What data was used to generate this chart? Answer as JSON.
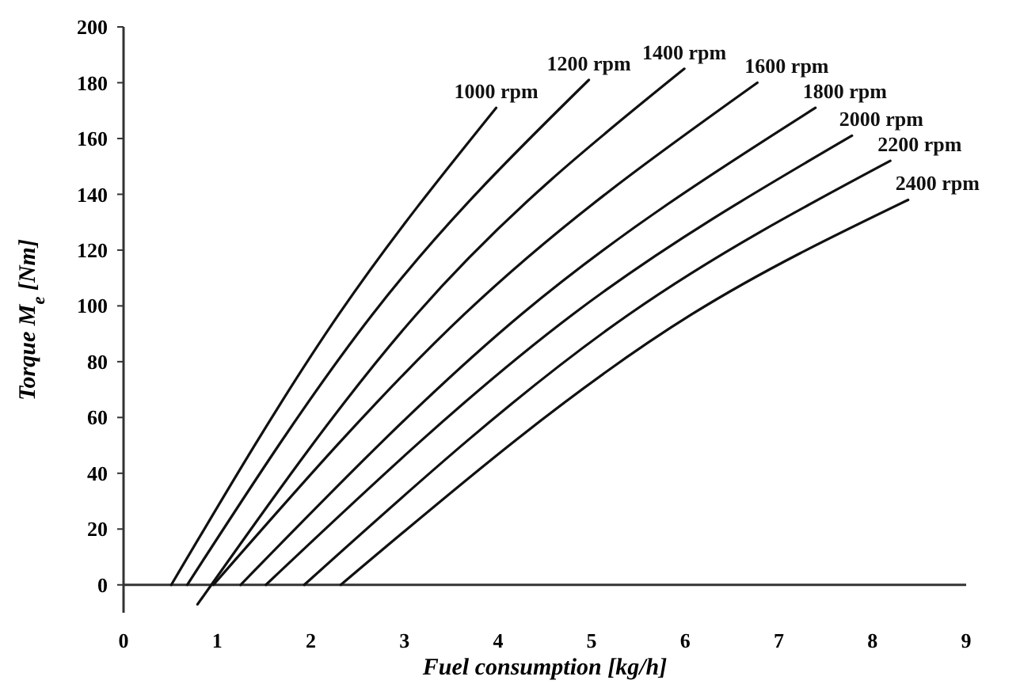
{
  "chart_data": {
    "type": "line",
    "xlabel": "Fuel consumption [kg/h]",
    "ylabel": "Torque M$_{e}$ [Nm]",
    "xlim": [
      0,
      9
    ],
    "xticks": [
      0,
      1,
      2,
      3,
      4,
      5,
      6,
      7,
      8,
      9
    ],
    "ylim": [
      -10,
      200
    ],
    "yticks": [
      0,
      20,
      40,
      60,
      80,
      100,
      120,
      140,
      160,
      180,
      200
    ],
    "grid": false,
    "marker": "none",
    "line_style": "solid",
    "series": [
      {
        "name": "1000 rpm",
        "color": "#111111",
        "x": [
          0.51,
          2.3,
          3.98
        ],
        "values": [
          0,
          97,
          171
        ]
      },
      {
        "name": "1200 rpm",
        "color": "#111111",
        "x": [
          0.68,
          2.66,
          4.97
        ],
        "values": [
          0,
          97,
          181
        ]
      },
      {
        "name": "1400 rpm",
        "color": "#111111",
        "x": [
          0.79,
          3.13,
          5.99
        ],
        "values": [
          -7,
          97,
          185
        ]
      },
      {
        "name": "1600 rpm",
        "color": "#111111",
        "x": [
          0.96,
          3.64,
          6.77
        ],
        "values": [
          0,
          97,
          180
        ]
      },
      {
        "name": "1800 rpm",
        "color": "#111111",
        "x": [
          1.25,
          4.25,
          7.39
        ],
        "values": [
          0,
          97,
          171
        ]
      },
      {
        "name": "2000 rpm",
        "color": "#111111",
        "x": [
          1.52,
          4.8,
          7.78
        ],
        "values": [
          0,
          97,
          161
        ]
      },
      {
        "name": "2200 rpm",
        "color": "#111111",
        "x": [
          1.93,
          5.4,
          8.19
        ],
        "values": [
          0,
          97,
          152
        ]
      },
      {
        "name": "2400 rpm",
        "color": "#111111",
        "x": [
          2.32,
          6.07,
          8.38
        ],
        "values": [
          0,
          97,
          138
        ]
      }
    ]
  }
}
